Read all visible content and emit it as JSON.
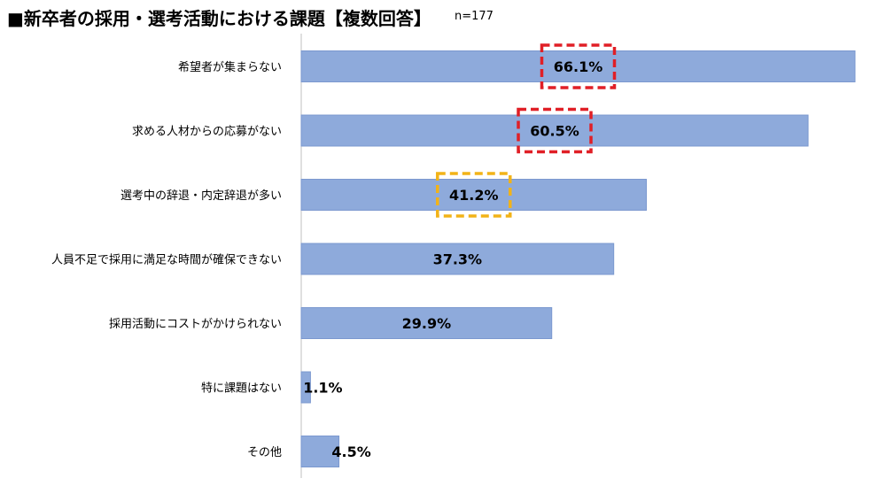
{
  "title": "■新卒者の採用・選考活動における課題【複数回答】",
  "sample_note": "n=177",
  "colors": {
    "bar": "#8eaadb",
    "bar_stroke": "#7b98cf",
    "highlight_primary": "#e01f26",
    "highlight_secondary": "#f2b318",
    "axis": "#bfbfbf"
  },
  "chart_data": {
    "type": "bar",
    "orientation": "horizontal",
    "categories": [
      "希望者が集まらない",
      "求める人材からの応募がない",
      "選考中の辞退・内定辞退が多い",
      "人員不足で採用に満足な時間が確保できない",
      "採用活動にコストがかけられない",
      "特に課題はない",
      "その他"
    ],
    "values": [
      66.1,
      60.5,
      41.2,
      37.3,
      29.9,
      1.1,
      4.5
    ],
    "value_labels": [
      "66.1%",
      "60.5%",
      "41.2%",
      "37.3%",
      "29.9%",
      "1.1%",
      "4.5%"
    ],
    "unit": "%",
    "xlim": [
      0,
      66.1
    ],
    "grid": false,
    "legend": "none",
    "highlights": [
      {
        "category": "希望者が集まらない",
        "style": "dashed-red"
      },
      {
        "category": "求める人材からの応募がない",
        "style": "dashed-red"
      },
      {
        "category": "選考中の辞退・内定辞退が多い",
        "style": "dashed-orange"
      }
    ]
  }
}
